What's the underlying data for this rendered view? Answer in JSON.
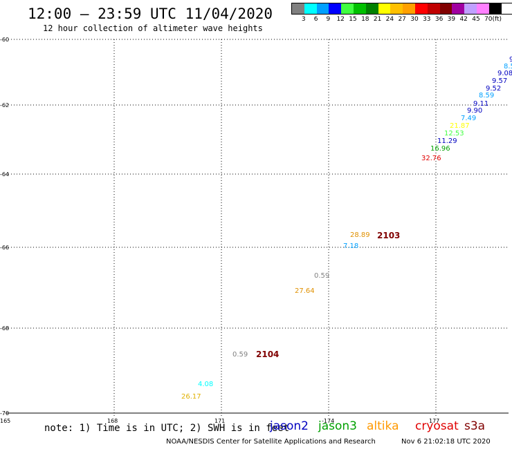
{
  "header": {
    "title": "12:00 – 23:59 UTC 11/04/2020",
    "subtitle": "12 hour collection of altimeter wave heights"
  },
  "color_scale": {
    "colors": [
      "#808080",
      "#00ffff",
      "#00a0ff",
      "#0000ff",
      "#40ff40",
      "#00c000",
      "#008000",
      "#ffff00",
      "#ffc000",
      "#ffa000",
      "#ff0000",
      "#c00000",
      "#800000",
      "#a000a0",
      "#c0a0ff",
      "#ff80ff",
      "#000000"
    ],
    "labels": [
      "3",
      "6",
      "9",
      "12",
      "15",
      "18",
      "21",
      "24",
      "27",
      "30",
      "33",
      "36",
      "39",
      "42",
      "45",
      "70",
      "(ft)"
    ]
  },
  "axes": {
    "lat_labels": [
      "-60",
      "-62",
      "-64",
      "-66",
      "-68",
      "-70"
    ],
    "lon_labels": [
      "165",
      "168",
      "171",
      "-174",
      "177"
    ]
  },
  "observations": [
    {
      "value": "9.",
      "color": "#0000c0"
    },
    {
      "value": "8.5",
      "color": "#00a0ff"
    },
    {
      "value": "9.08",
      "color": "#0000c0"
    },
    {
      "value": "9.57",
      "color": "#0000c0"
    },
    {
      "value": "9.52",
      "color": "#0000c0"
    },
    {
      "value": "8.59",
      "color": "#00a0ff"
    },
    {
      "value": "9.11",
      "color": "#0000c0"
    },
    {
      "value": "9.90",
      "color": "#0000c0"
    },
    {
      "value": "7.49",
      "color": "#00a0ff"
    },
    {
      "value": "21.87",
      "color": "#ffff00"
    },
    {
      "value": "12.53",
      "color": "#40ff40"
    },
    {
      "value": "11.29",
      "color": "#0000c0"
    },
    {
      "value": "16.96",
      "color": "#00a000"
    },
    {
      "value": "32.76",
      "color": "#e00000"
    },
    {
      "value": "28.89",
      "color": "#e09000"
    },
    {
      "value": "7.18",
      "color": "#00a0ff"
    },
    {
      "value": "0.59",
      "color": "#808080"
    },
    {
      "value": "27.64",
      "color": "#e09000"
    },
    {
      "value": "0.59",
      "color": "#808080"
    },
    {
      "value": "4.08",
      "color": "#00ffff"
    },
    {
      "value": "26.17",
      "color": "#e0b000"
    }
  ],
  "pass_labels": [
    {
      "value": "2103",
      "color": "#800000"
    },
    {
      "value": "2104",
      "color": "#800000"
    }
  ],
  "footer": {
    "note": "note: 1) Time is in UTC; 2) SWH is in feet",
    "satellites": [
      {
        "name": "jason2",
        "color": "#0000c0"
      },
      {
        "name": "jason3",
        "color": "#00a000"
      },
      {
        "name": "altika",
        "color": "#ff9900"
      },
      {
        "name": "cryosat",
        "color": "#e00000"
      },
      {
        "name": "s3a",
        "color": "#800000"
      }
    ],
    "credit": "NOAA/NESDIS Center for Satellite Applications and Research",
    "generated": "Nov  6 21:02:18 UTC 2020"
  }
}
